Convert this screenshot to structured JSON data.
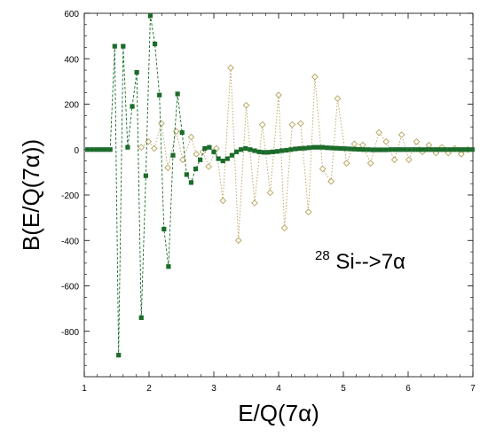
{
  "chart_data": {
    "type": "scatter",
    "title": "",
    "xlabel": "E/Q(7α)",
    "ylabel": "B(E/Q(7α))",
    "xlim": [
      1,
      7
    ],
    "ylim": [
      -1000,
      600
    ],
    "x_ticks": [
      "1",
      "2",
      "3",
      "4",
      "5",
      "6",
      "7"
    ],
    "y_ticks": [
      "600",
      "400",
      "200",
      "0",
      "-200",
      "-400",
      "-600",
      "-800"
    ],
    "y_tick_values": [
      600,
      400,
      200,
      0,
      -200,
      -400,
      -600,
      -800
    ],
    "x_tick_values": [
      1,
      2,
      3,
      4,
      5,
      6,
      7
    ],
    "grid": false,
    "annotation": {
      "mass_number": "28",
      "text": "Si-->7α"
    },
    "colors": {
      "series_solid": "#1b6b2a",
      "series_open": "#b5a15a"
    },
    "series": [
      {
        "marker": "filled-square",
        "line": "dashed",
        "x": [
          1.05,
          1.12,
          1.19,
          1.26,
          1.33,
          1.4,
          1.47,
          1.53,
          1.6,
          1.67,
          1.74,
          1.81,
          1.88,
          1.95,
          2.02,
          2.09,
          2.16,
          2.23,
          2.3,
          2.37,
          2.44,
          2.51,
          2.58,
          2.65,
          2.72,
          2.79,
          2.86,
          2.93,
          3.0,
          3.07,
          3.14,
          3.21,
          3.28,
          3.35,
          3.42,
          3.49,
          3.56,
          3.63,
          3.7,
          3.77,
          3.84,
          3.91,
          3.98,
          4.05,
          4.12,
          4.19,
          4.26,
          4.33,
          4.4,
          4.47,
          4.54,
          4.61,
          4.68,
          4.75,
          4.82,
          4.89,
          4.96,
          5.03,
          5.1,
          5.17,
          5.24,
          5.31,
          5.38,
          5.45,
          5.52,
          5.59,
          5.66,
          5.73,
          5.8,
          5.87,
          5.94,
          6.01,
          6.08,
          6.15,
          6.22,
          6.29,
          6.36,
          6.43,
          6.5,
          6.57,
          6.64,
          6.71,
          6.78,
          6.85,
          6.92,
          6.99
        ],
        "y": [
          0,
          0,
          0,
          0,
          0,
          0,
          455,
          -905,
          455,
          10,
          190,
          340,
          -740,
          -115,
          590,
          465,
          240,
          -350,
          -515,
          -25,
          245,
          75,
          -110,
          -145,
          -85,
          -45,
          5,
          10,
          -10,
          -40,
          -50,
          -40,
          -25,
          -10,
          0,
          5,
          0,
          -5,
          -10,
          -12,
          -12,
          -10,
          -8,
          -5,
          -3,
          0,
          3,
          5,
          6,
          8,
          10,
          10,
          10,
          8,
          7,
          6,
          5,
          4,
          3,
          2,
          1,
          0,
          0,
          -1,
          -1,
          -1,
          -1,
          0,
          0,
          0,
          0,
          0,
          0,
          0,
          0,
          0,
          0,
          0,
          0,
          0,
          0,
          0,
          0,
          0,
          0,
          0
        ]
      },
      {
        "marker": "open-diamond",
        "line": "dotted",
        "x": [
          1.88,
          1.99,
          2.08,
          2.19,
          2.29,
          2.42,
          2.52,
          2.65,
          2.73,
          2.83,
          2.92,
          3.04,
          3.14,
          3.26,
          3.38,
          3.5,
          3.63,
          3.75,
          3.87,
          4.0,
          4.09,
          4.21,
          4.34,
          4.46,
          4.56,
          4.68,
          4.81,
          4.91,
          5.05,
          5.17,
          5.3,
          5.42,
          5.55,
          5.66,
          5.79,
          5.9,
          6.01,
          6.13,
          6.22,
          6.32,
          6.43,
          6.52,
          6.62,
          6.72,
          6.82,
          6.92
        ],
        "y": [
          10,
          35,
          5,
          115,
          -80,
          80,
          -45,
          55,
          -20,
          -10,
          -75,
          5,
          -225,
          360,
          -400,
          195,
          -235,
          110,
          -190,
          240,
          -345,
          110,
          115,
          -275,
          320,
          -85,
          -140,
          225,
          -60,
          25,
          20,
          -60,
          75,
          35,
          -45,
          65,
          -45,
          35,
          -10,
          20,
          -15,
          10,
          -15,
          5,
          -20,
          0
        ]
      }
    ]
  }
}
